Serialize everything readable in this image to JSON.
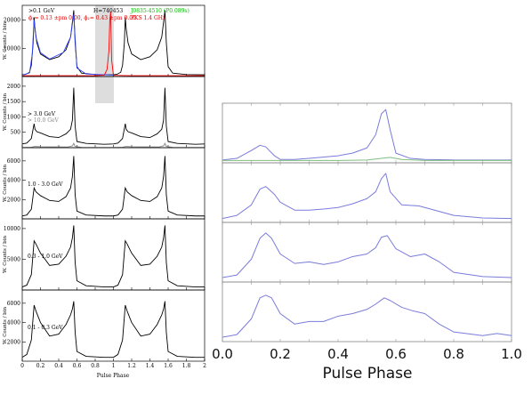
{
  "left_figure": {
    "xlabel": "Pulse Phase",
    "x_ticks": [
      "0",
      "0.2",
      "0.4",
      "0.6",
      "0.8",
      "1",
      "1.2",
      "1.4",
      "1.6",
      "1.8",
      "2"
    ],
    "panels": [
      {
        "labels": [
          {
            "text": ">0.1 GeV",
            "color": "#000000"
          },
          {
            "text": "H=740453",
            "color": "#000000"
          },
          {
            "text": "J0835-4510 (P0.089s)",
            "color": "#00bb00"
          },
          {
            "text": "ϕ₁= 0.13 ±pm 0.00, ϕ₂= 0.43 ±pm 0.00",
            "color": "#dd0000"
          },
          {
            "text": "PKS 1.4 GHz",
            "color": "#dd0000"
          }
        ],
        "ylabel": "W. Counts / bin",
        "y_ticks": [
          "10000",
          "20000"
        ]
      },
      {
        "labels": [
          {
            "text": "> 3.0 GeV",
            "color": "#000000"
          },
          {
            "text": "> 10.0 GeV",
            "color": "#888888"
          }
        ],
        "ylabel": "W. Counts / bin",
        "y_ticks": [
          "500",
          "1000",
          "1500",
          "2000"
        ]
      },
      {
        "labels": [
          {
            "text": "1.0 - 3.0 GeV",
            "color": "#000000"
          }
        ],
        "ylabel": "W. Counts / bin",
        "y_ticks": [
          "2000",
          "4000",
          "6000"
        ]
      },
      {
        "labels": [
          {
            "text": "0.3 - 1.0 GeV",
            "color": "#000000"
          }
        ],
        "ylabel": "W. Counts / bin",
        "y_ticks": [
          "5000",
          "10000"
        ]
      },
      {
        "labels": [
          {
            "text": "0.1 - 0.3 GeV",
            "color": "#000000"
          }
        ],
        "ylabel": "W. Counts / bin",
        "y_ticks": [
          "2000",
          "4000",
          "6000"
        ]
      }
    ]
  },
  "chart_data": [
    {
      "type": "line",
      "xlabel": "Pulse Phase",
      "xlim": [
        0,
        2
      ],
      "panels": [
        {
          "ylim": [
            0,
            24000
          ],
          "series": [
            {
              "color": "#000000",
              "x": [
                0,
                0.04,
                0.08,
                0.1,
                0.12,
                0.13,
                0.14,
                0.16,
                0.2,
                0.3,
                0.4,
                0.48,
                0.53,
                0.56,
                0.565,
                0.58,
                0.6,
                0.65,
                0.8,
                1.0,
                1.04,
                1.08,
                1.1,
                1.12,
                1.13,
                1.14,
                1.16,
                1.2,
                1.3,
                1.4,
                1.48,
                1.53,
                1.56,
                1.565,
                1.58,
                1.6,
                1.65,
                1.8,
                2.0
              ],
              "y": [
                600,
                800,
                1500,
                4000,
                12000,
                21000,
                17000,
                12000,
                8000,
                6000,
                7000,
                9500,
                14000,
                22000,
                23500,
                12000,
                3500,
                1200,
                700,
                600,
                800,
                1500,
                4000,
                12000,
                21000,
                17000,
                12000,
                8000,
                6000,
                7000,
                9500,
                14000,
                22000,
                23500,
                12000,
                3500,
                1200,
                700,
                600
              ]
            },
            {
              "color": "#3344ff",
              "x": [
                0,
                0.08,
                0.11,
                0.13,
                0.15,
                0.2,
                0.3,
                0.45,
                0.53,
                0.565,
                0.6,
                0.7,
                1.0
              ],
              "y": [
                500,
                1300,
                8000,
                20000,
                14000,
                8500,
                6200,
                8500,
                14000,
                22000,
                3000,
                900,
                500
              ]
            },
            {
              "color": "#ff0000",
              "x": [
                0,
                0.8,
                0.9,
                0.93,
                0.95,
                0.96,
                0.97,
                0.98,
                1.0,
                1.2,
                2.0
              ],
              "y": [
                300,
                300,
                500,
                2500,
                9000,
                20000,
                23000,
                6000,
                400,
                300,
                300
              ]
            }
          ]
        },
        {
          "ylim": [
            0,
            2200
          ],
          "series": [
            {
              "color": "#000000",
              "x": [
                0,
                0.05,
                0.1,
                0.13,
                0.14,
                0.16,
                0.2,
                0.3,
                0.4,
                0.48,
                0.53,
                0.55,
                0.565,
                0.58,
                0.6,
                0.7,
                0.9,
                1.0,
                1.05,
                1.1,
                1.13,
                1.14,
                1.16,
                1.2,
                1.3,
                1.4,
                1.48,
                1.53,
                1.55,
                1.565,
                1.58,
                1.6,
                1.7,
                1.9,
                2.0
              ],
              "y": [
                120,
                150,
                300,
                780,
                600,
                520,
                480,
                360,
                330,
                450,
                600,
                900,
                1950,
                700,
                200,
                140,
                110,
                120,
                150,
                300,
                780,
                600,
                520,
                480,
                360,
                330,
                450,
                600,
                900,
                1950,
                700,
                200,
                140,
                110,
                120
              ]
            },
            {
              "color": "#888888",
              "x": [
                0,
                0.1,
                0.14,
                0.2,
                0.5,
                0.55,
                0.565,
                0.58,
                0.65,
                1.0,
                1.1,
                1.14,
                1.2,
                1.5,
                1.55,
                1.565,
                1.58,
                1.65,
                2.0
              ],
              "y": [
                10,
                15,
                40,
                30,
                25,
                60,
                140,
                40,
                12,
                10,
                15,
                40,
                30,
                25,
                60,
                140,
                40,
                12,
                10
              ]
            }
          ]
        },
        {
          "ylim": [
            0,
            7000
          ],
          "series": [
            {
              "color": "#000000",
              "x": [
                0,
                0.05,
                0.1,
                0.13,
                0.15,
                0.2,
                0.3,
                0.4,
                0.48,
                0.53,
                0.55,
                0.565,
                0.58,
                0.6,
                0.7,
                0.9,
                1.0,
                1.05,
                1.1,
                1.13,
                1.15,
                1.2,
                1.3,
                1.4,
                1.48,
                1.53,
                1.55,
                1.565,
                1.58,
                1.6,
                1.7,
                1.9,
                2.0
              ],
              "y": [
                300,
                400,
                1000,
                3200,
                2800,
                2400,
                1900,
                1800,
                2300,
                3200,
                4400,
                6500,
                2500,
                800,
                400,
                300,
                300,
                400,
                1000,
                3200,
                2800,
                2400,
                1900,
                1800,
                2300,
                3200,
                4400,
                6500,
                2500,
                800,
                400,
                300,
                300
              ]
            }
          ]
        },
        {
          "ylim": [
            0,
            11000
          ],
          "series": [
            {
              "color": "#000000",
              "x": [
                0,
                0.05,
                0.1,
                0.13,
                0.15,
                0.2,
                0.3,
                0.4,
                0.48,
                0.53,
                0.55,
                0.565,
                0.58,
                0.6,
                0.7,
                0.9,
                1.0,
                1.05,
                1.1,
                1.13,
                1.15,
                1.2,
                1.3,
                1.4,
                1.48,
                1.53,
                1.55,
                1.565,
                1.58,
                1.6,
                1.7,
                1.9,
                2.0
              ],
              "y": [
                500,
                800,
                2500,
                8000,
                7500,
                6000,
                4000,
                4200,
                5500,
                7000,
                8500,
                10500,
                4500,
                1500,
                700,
                500,
                500,
                800,
                2500,
                8000,
                7500,
                6000,
                4000,
                4200,
                5500,
                7000,
                8500,
                10500,
                4500,
                1500,
                700,
                500,
                500
              ]
            }
          ]
        },
        {
          "ylim": [
            0,
            7000
          ],
          "series": [
            {
              "color": "#000000",
              "x": [
                0,
                0.05,
                0.1,
                0.13,
                0.15,
                0.2,
                0.3,
                0.4,
                0.48,
                0.53,
                0.55,
                0.565,
                0.58,
                0.6,
                0.7,
                0.9,
                1.0,
                1.05,
                1.1,
                1.13,
                1.15,
                1.2,
                1.3,
                1.4,
                1.48,
                1.53,
                1.55,
                1.565,
                1.58,
                1.6,
                1.7,
                1.9,
                2.0
              ],
              "y": [
                400,
                700,
                2200,
                5800,
                5200,
                4000,
                2600,
                2800,
                3800,
                4800,
                5400,
                6200,
                3000,
                1000,
                500,
                400,
                400,
                700,
                2200,
                5800,
                5200,
                4000,
                2600,
                2800,
                3800,
                4800,
                5400,
                6200,
                3000,
                1000,
                500,
                400,
                400
              ]
            }
          ]
        }
      ]
    },
    {
      "type": "line",
      "xlabel": "Pulse Phase",
      "xlim": [
        0,
        1
      ],
      "x_ticks": [
        "0.0",
        "0.2",
        "0.4",
        "0.6",
        "0.8",
        "1.0"
      ],
      "panels": [
        {
          "ylim": [
            0,
            1
          ],
          "series": [
            {
              "color": "#7b7bdb",
              "x": [
                0,
                0.05,
                0.1,
                0.13,
                0.15,
                0.18,
                0.2,
                0.25,
                0.3,
                0.4,
                0.45,
                0.5,
                0.53,
                0.55,
                0.565,
                0.58,
                0.6,
                0.65,
                0.7,
                0.8,
                1.0
              ],
              "y": [
                0.02,
                0.05,
                0.2,
                0.3,
                0.27,
                0.1,
                0.03,
                0.03,
                0.05,
                0.1,
                0.15,
                0.25,
                0.5,
                0.9,
                0.98,
                0.6,
                0.15,
                0.05,
                0.03,
                0.02,
                0.02
              ]
            },
            {
              "color": "#7fbf7f",
              "x": [
                0,
                0.2,
                0.4,
                0.5,
                0.55,
                0.58,
                0.62,
                0.7,
                1.0
              ],
              "y": [
                0.01,
                0.01,
                0.01,
                0.02,
                0.05,
                0.07,
                0.03,
                0.01,
                0.01
              ]
            }
          ]
        },
        {
          "ylim": [
            0,
            1
          ],
          "series": [
            {
              "color": "#7b7bdb",
              "x": [
                0,
                0.05,
                0.1,
                0.13,
                0.15,
                0.18,
                0.2,
                0.25,
                0.3,
                0.35,
                0.4,
                0.45,
                0.5,
                0.53,
                0.55,
                0.565,
                0.58,
                0.62,
                0.68,
                0.72,
                0.8,
                0.9,
                1.0
              ],
              "y": [
                0.04,
                0.1,
                0.3,
                0.6,
                0.65,
                0.5,
                0.35,
                0.2,
                0.2,
                0.22,
                0.25,
                0.32,
                0.42,
                0.55,
                0.8,
                0.9,
                0.55,
                0.3,
                0.28,
                0.22,
                0.1,
                0.05,
                0.04
              ]
            }
          ]
        },
        {
          "ylim": [
            0,
            1
          ],
          "series": [
            {
              "color": "#7b7bdb",
              "x": [
                0,
                0.05,
                0.1,
                0.13,
                0.15,
                0.17,
                0.2,
                0.25,
                0.3,
                0.35,
                0.4,
                0.45,
                0.5,
                0.53,
                0.55,
                0.57,
                0.6,
                0.65,
                0.7,
                0.75,
                0.8,
                0.9,
                1.0
              ],
              "y": [
                0.05,
                0.1,
                0.4,
                0.8,
                0.9,
                0.8,
                0.5,
                0.32,
                0.35,
                0.3,
                0.35,
                0.45,
                0.5,
                0.62,
                0.82,
                0.85,
                0.6,
                0.45,
                0.5,
                0.35,
                0.15,
                0.07,
                0.05
              ]
            }
          ]
        },
        {
          "ylim": [
            0,
            1
          ],
          "series": [
            {
              "color": "#7b7bdb",
              "x": [
                0,
                0.05,
                0.1,
                0.13,
                0.15,
                0.17,
                0.2,
                0.25,
                0.3,
                0.35,
                0.4,
                0.45,
                0.5,
                0.53,
                0.56,
                0.58,
                0.62,
                0.66,
                0.7,
                0.75,
                0.8,
                0.9,
                0.95,
                1.0
              ],
              "y": [
                0.05,
                0.1,
                0.4,
                0.8,
                0.85,
                0.8,
                0.5,
                0.3,
                0.35,
                0.35,
                0.45,
                0.5,
                0.58,
                0.68,
                0.8,
                0.75,
                0.62,
                0.55,
                0.5,
                0.3,
                0.15,
                0.08,
                0.12,
                0.08
              ]
            }
          ]
        }
      ]
    }
  ]
}
